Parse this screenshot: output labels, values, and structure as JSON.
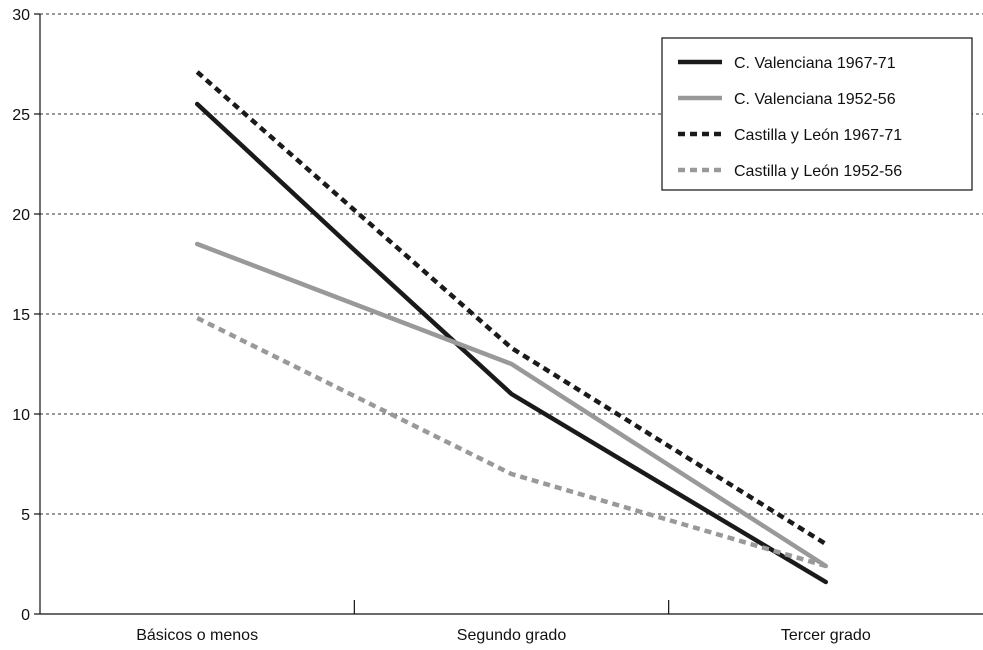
{
  "chart_data": {
    "type": "line",
    "title": "",
    "xlabel": "",
    "ylabel": "",
    "categories": [
      "Básicos o menos",
      "Segundo grado",
      "Tercer grado"
    ],
    "ylim": [
      0,
      30
    ],
    "yticks": [
      0,
      5,
      10,
      15,
      20,
      25,
      30
    ],
    "grid": "horizontal dashed",
    "legend_position": "top-right",
    "series": [
      {
        "name": "C. Valenciana 1967-71",
        "x": [
          0,
          0.5,
          1,
          2
        ],
        "values": [
          25.5,
          18.2,
          11.0,
          1.6
        ],
        "color": "#1a1a1a",
        "style": "solid"
      },
      {
        "name": "C. Valenciana 1952-56",
        "x": [
          0,
          0.5,
          1,
          2
        ],
        "values": [
          18.5,
          15.5,
          12.5,
          2.4
        ],
        "color": "#999999",
        "style": "solid"
      },
      {
        "name": "Castilla y León 1967-71",
        "x": [
          0,
          0.5,
          1,
          2
        ],
        "values": [
          27.1,
          20.2,
          13.3,
          3.5
        ],
        "color": "#1a1a1a",
        "style": "dashed"
      },
      {
        "name": "Castilla y León 1952-56",
        "x": [
          0,
          0.5,
          1,
          2
        ],
        "values": [
          14.8,
          10.9,
          7.0,
          2.4
        ],
        "color": "#999999",
        "style": "dashed"
      }
    ]
  }
}
